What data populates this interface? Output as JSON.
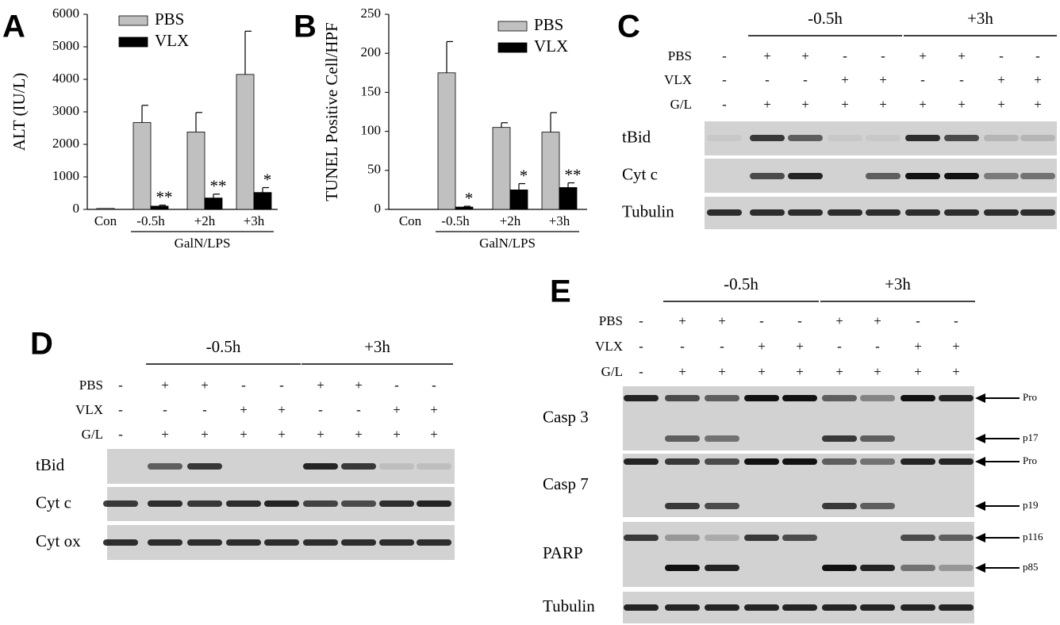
{
  "chart_data": [
    {
      "type": "bar",
      "panel": "A",
      "ylabel": "ALT (IU/L)",
      "group_label": "GalN/LPS",
      "categories": [
        "Con",
        "-0.5h",
        "+2h",
        "+3h"
      ],
      "series": [
        {
          "name": "PBS",
          "color": "#c0c0c0",
          "values": [
            30,
            2670,
            2380,
            4150
          ],
          "errors": [
            null,
            530,
            600,
            1330
          ]
        },
        {
          "name": "VLX",
          "color": "#000000",
          "values": [
            null,
            100,
            350,
            520
          ],
          "errors": [
            null,
            30,
            120,
            150
          ]
        }
      ],
      "annotations": [
        null,
        "**",
        "**",
        "*"
      ],
      "ylim": [
        0,
        6000
      ],
      "yticks": [
        0,
        1000,
        2000,
        3000,
        4000,
        5000,
        6000
      ]
    },
    {
      "type": "bar",
      "panel": "B",
      "ylabel": "TUNEL Positive Cell/HPF",
      "group_label": "GalN/LPS",
      "categories": [
        "Con",
        "-0.5h",
        "+2h",
        "+3h"
      ],
      "series": [
        {
          "name": "PBS",
          "color": "#c0c0c0",
          "values": [
            0,
            175,
            105,
            99
          ],
          "errors": [
            null,
            40,
            6,
            25
          ]
        },
        {
          "name": "VLX",
          "color": "#000000",
          "values": [
            null,
            3,
            25,
            28
          ],
          "errors": [
            null,
            1,
            8,
            6
          ]
        }
      ],
      "annotations": [
        null,
        "*",
        "*",
        "**"
      ],
      "ylim": [
        0,
        250
      ],
      "yticks": [
        0,
        50,
        100,
        150,
        200,
        250
      ]
    }
  ],
  "blots": [
    {
      "panel": "C",
      "groups": [
        "-0.5h",
        "+3h"
      ],
      "conditions": [
        {
          "label": "PBS",
          "signs": [
            "-",
            "+",
            "+",
            "-",
            "-",
            "+",
            "+",
            "-",
            "-"
          ]
        },
        {
          "label": "VLX",
          "signs": [
            "-",
            "-",
            "-",
            "+",
            "+",
            "-",
            "-",
            "+",
            "+"
          ]
        },
        {
          "label": "G/L",
          "signs": [
            "-",
            "+",
            "+",
            "+",
            "+",
            "+",
            "+",
            "+",
            "+"
          ]
        }
      ],
      "rows": [
        "tBid",
        "Cyt c",
        "Tubulin"
      ]
    },
    {
      "panel": "D",
      "groups": [
        "-0.5h",
        "+3h"
      ],
      "conditions": [
        {
          "label": "PBS",
          "signs": [
            "-",
            "+",
            "+",
            "-",
            "-",
            "+",
            "+",
            "-",
            "-"
          ]
        },
        {
          "label": "VLX",
          "signs": [
            "-",
            "-",
            "-",
            "+",
            "+",
            "-",
            "-",
            "+",
            "+"
          ]
        },
        {
          "label": "G/L",
          "signs": [
            "-",
            "+",
            "+",
            "+",
            "+",
            "+",
            "+",
            "+",
            "+"
          ]
        }
      ],
      "rows": [
        "tBid",
        "Cyt c",
        "Cyt ox"
      ]
    },
    {
      "panel": "E",
      "groups": [
        "-0.5h",
        "+3h"
      ],
      "conditions": [
        {
          "label": "PBS",
          "signs": [
            "-",
            "+",
            "+",
            "-",
            "-",
            "+",
            "+",
            "-",
            "-"
          ]
        },
        {
          "label": "VLX",
          "signs": [
            "-",
            "-",
            "-",
            "+",
            "+",
            "-",
            "-",
            "+",
            "+"
          ]
        },
        {
          "label": "G/L",
          "signs": [
            "-",
            "+",
            "+",
            "+",
            "+",
            "+",
            "+",
            "+",
            "+"
          ]
        }
      ],
      "rows": [
        "Casp 3",
        "Casp 7",
        "PARP",
        "Tubulin"
      ],
      "markers": [
        "Pro",
        "p17",
        "Pro",
        "p19",
        "p116",
        "p85"
      ]
    }
  ]
}
